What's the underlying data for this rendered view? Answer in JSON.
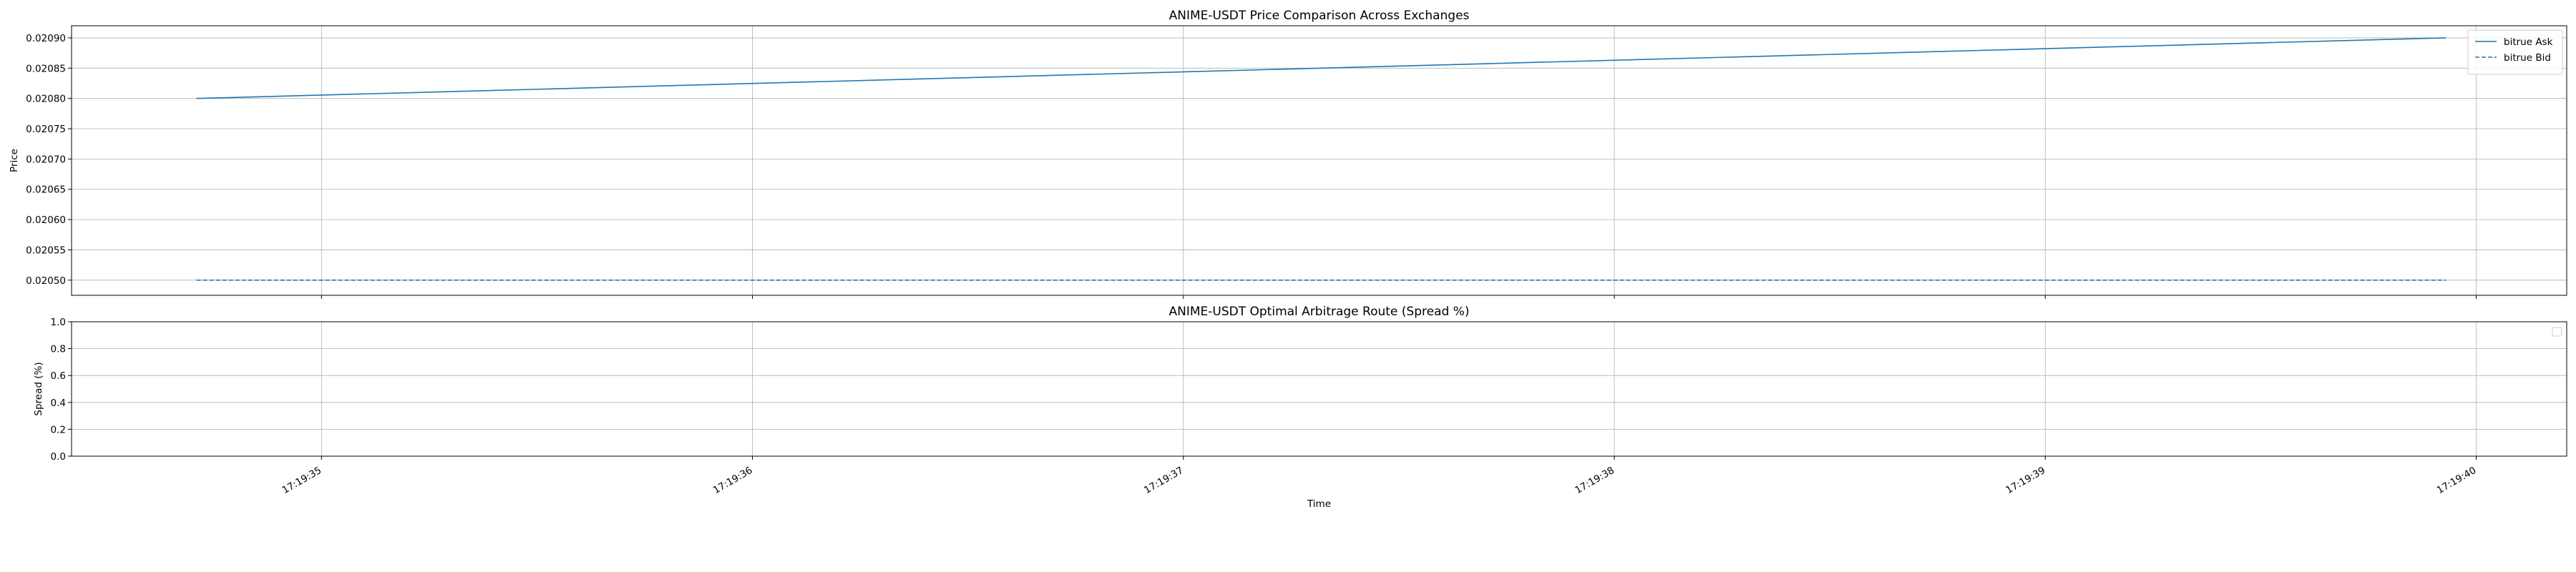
{
  "chart_data": [
    {
      "type": "line",
      "title": "ANIME-USDT Price Comparison Across Exchanges",
      "xlabel": "",
      "ylabel": "Price",
      "x": [
        "17:19:34.710",
        "17:19:39.930"
      ],
      "xlim": [
        "17:19:34.420",
        "17:19:40.210"
      ],
      "ylim": [
        0.020475,
        0.02092
      ],
      "yticks": [
        "0.02050",
        "0.02055",
        "0.02060",
        "0.02065",
        "0.02070",
        "0.02075",
        "0.02080",
        "0.02085",
        "0.02090"
      ],
      "ytick_values": [
        0.0205,
        0.02055,
        0.0206,
        0.02065,
        0.0207,
        0.02075,
        0.0208,
        0.02085,
        0.0209
      ],
      "grid": true,
      "legend_position": "top-right",
      "series": [
        {
          "name": "bitrue Ask",
          "values": [
            0.0208,
            0.0209
          ],
          "color": "#1f77b4",
          "style": "solid"
        },
        {
          "name": "bitrue Bid",
          "values": [
            0.0205,
            0.0205
          ],
          "color": "#1f77b4",
          "style": "dashed"
        }
      ]
    },
    {
      "type": "line",
      "title": "ANIME-USDT Optimal Arbitrage Route (Spread %)",
      "xlabel": "Time",
      "ylabel": "Spread (%)",
      "xlim": [
        "17:19:34.420",
        "17:19:40.210"
      ],
      "xticks": [
        "17:19:35",
        "17:19:36",
        "17:19:37",
        "17:19:38",
        "17:19:39",
        "17:19:40"
      ],
      "ylim": [
        0.0,
        1.0
      ],
      "yticks": [
        "0.0",
        "0.2",
        "0.4",
        "0.6",
        "0.8",
        "1.0"
      ],
      "ytick_values": [
        0.0,
        0.2,
        0.4,
        0.6,
        0.8,
        1.0
      ],
      "grid": true,
      "legend_position": "top-right",
      "series": []
    }
  ]
}
